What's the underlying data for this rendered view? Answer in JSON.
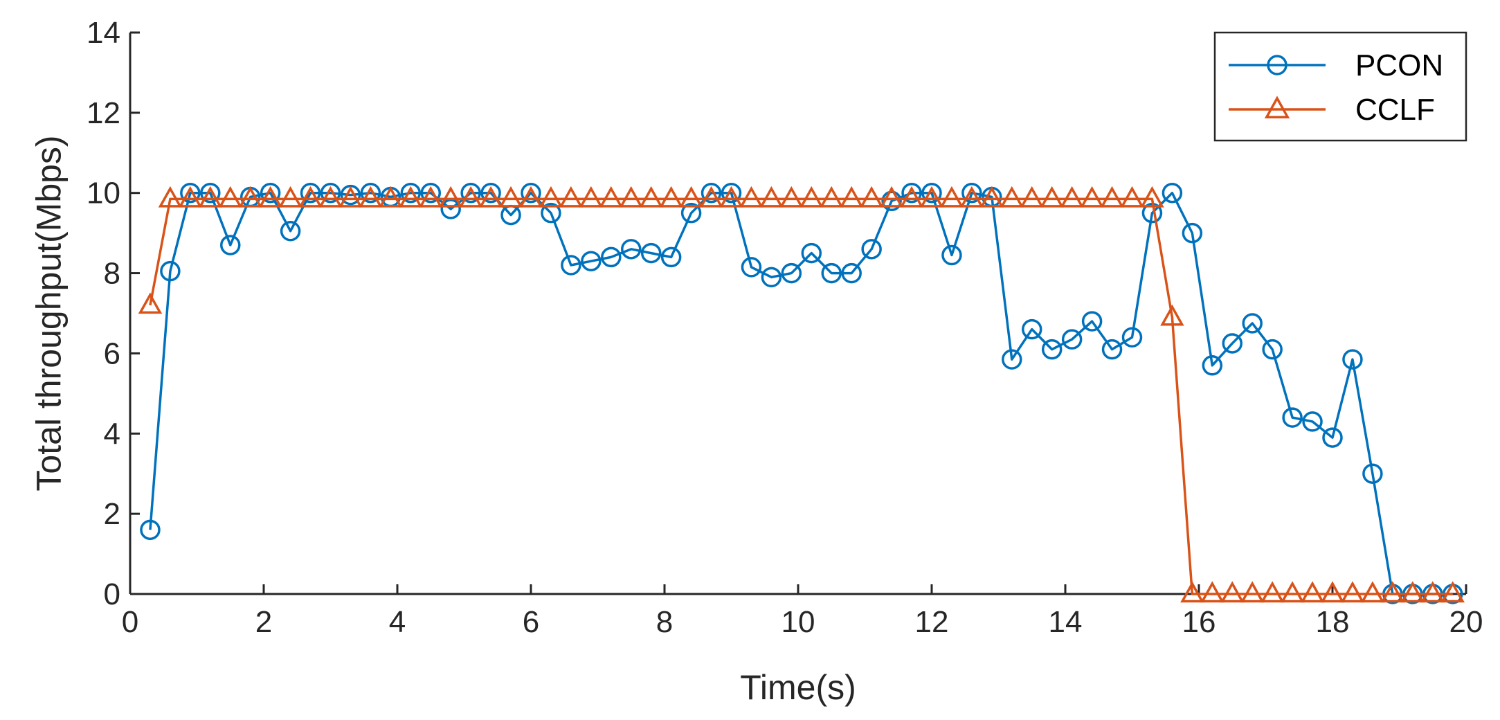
{
  "chart_data": {
    "type": "line",
    "title": "",
    "xlabel": "Time(s)",
    "ylabel": "Total throughput(Mbps)",
    "xlim": [
      0,
      20
    ],
    "ylim": [
      0,
      14
    ],
    "xticks": [
      0,
      2,
      4,
      6,
      8,
      10,
      12,
      14,
      16,
      18,
      20
    ],
    "yticks": [
      0,
      2,
      4,
      6,
      8,
      10,
      12,
      14
    ],
    "grid": false,
    "legend_position": "top-right",
    "series": [
      {
        "name": "PCON",
        "color": "#0072BD",
        "marker": "circle",
        "x": [
          0.3,
          0.6,
          0.9,
          1.2,
          1.5,
          1.8,
          2.1,
          2.4,
          2.7,
          3.0,
          3.3,
          3.6,
          3.9,
          4.2,
          4.5,
          4.8,
          5.1,
          5.4,
          5.7,
          6.0,
          6.3,
          6.6,
          6.9,
          7.2,
          7.5,
          7.8,
          8.1,
          8.4,
          8.7,
          9.0,
          9.3,
          9.6,
          9.9,
          10.2,
          10.5,
          10.8,
          11.1,
          11.4,
          11.7,
          12.0,
          12.3,
          12.6,
          12.9,
          13.2,
          13.5,
          13.8,
          14.1,
          14.4,
          14.7,
          15.0,
          15.3,
          15.6,
          15.9,
          16.2,
          16.5,
          16.8,
          17.1,
          17.4,
          17.7,
          18.0,
          18.3,
          18.6,
          18.9,
          19.2,
          19.5,
          19.8
        ],
        "y": [
          1.6,
          8.05,
          10.0,
          10.0,
          8.7,
          9.9,
          10.0,
          9.05,
          10.0,
          10.0,
          9.95,
          10.0,
          9.9,
          10.0,
          10.0,
          9.6,
          10.0,
          10.0,
          9.45,
          10.0,
          9.5,
          8.2,
          8.3,
          8.4,
          8.6,
          8.5,
          8.4,
          9.5,
          10.0,
          10.0,
          8.15,
          7.9,
          8.0,
          8.5,
          8.0,
          8.0,
          8.6,
          9.8,
          10.0,
          10.0,
          8.45,
          10.0,
          9.9,
          5.85,
          6.6,
          6.1,
          6.35,
          6.8,
          6.1,
          6.4,
          9.5,
          10.0,
          9.0,
          5.7,
          6.25,
          6.75,
          6.1,
          4.4,
          4.3,
          3.9,
          5.85,
          3.0,
          0.0,
          0.0,
          0.0,
          0.0
        ]
      },
      {
        "name": "CCLF",
        "color": "#D95319",
        "marker": "triangle",
        "x": [
          0.3,
          0.6,
          0.9,
          1.2,
          1.5,
          1.8,
          2.1,
          2.4,
          2.7,
          3.0,
          3.3,
          3.6,
          3.9,
          4.2,
          4.5,
          4.8,
          5.1,
          5.4,
          5.7,
          6.0,
          6.3,
          6.6,
          6.9,
          7.2,
          7.5,
          7.8,
          8.1,
          8.4,
          8.7,
          9.0,
          9.3,
          9.6,
          9.9,
          10.2,
          10.5,
          10.8,
          11.1,
          11.4,
          11.7,
          12.0,
          12.3,
          12.6,
          12.9,
          13.2,
          13.5,
          13.8,
          14.1,
          14.4,
          14.7,
          15.0,
          15.3,
          15.6,
          15.9,
          16.2,
          16.5,
          16.8,
          17.1,
          17.4,
          17.7,
          18.0,
          18.3,
          18.6,
          18.9,
          19.2,
          19.5,
          19.8
        ],
        "y": [
          7.2,
          9.85,
          9.85,
          9.85,
          9.85,
          9.85,
          9.85,
          9.85,
          9.85,
          9.85,
          9.85,
          9.85,
          9.85,
          9.85,
          9.85,
          9.85,
          9.85,
          9.85,
          9.85,
          9.85,
          9.85,
          9.85,
          9.85,
          9.85,
          9.85,
          9.85,
          9.85,
          9.85,
          9.85,
          9.85,
          9.85,
          9.85,
          9.85,
          9.85,
          9.85,
          9.85,
          9.85,
          9.85,
          9.85,
          9.85,
          9.85,
          9.85,
          9.85,
          9.85,
          9.85,
          9.85,
          9.85,
          9.85,
          9.85,
          9.85,
          9.85,
          6.9,
          0.0,
          0.0,
          0.0,
          0.0,
          0.0,
          0.0,
          0.0,
          0.0,
          0.0,
          0.0,
          0.0,
          0.0,
          0.0,
          0.0
        ]
      }
    ]
  }
}
